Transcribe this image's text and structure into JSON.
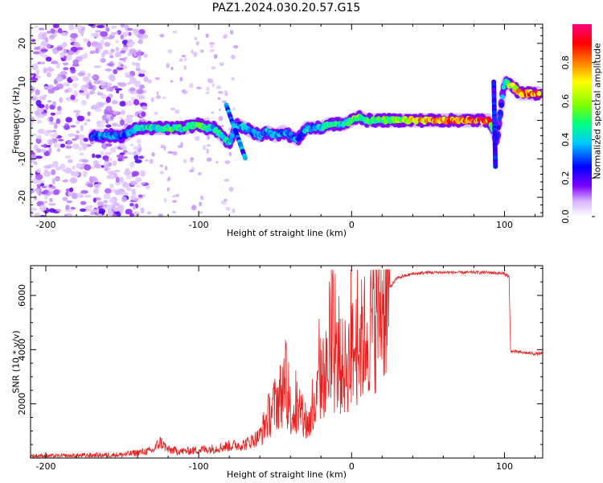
{
  "title": "PAZ1.2024.030.20.57.G15",
  "chart_data": [
    {
      "type": "heatmap",
      "xlabel": "Height of straight line (km)",
      "ylabel": "Frequency (Hz)",
      "xlim": [
        -210,
        125
      ],
      "ylim": [
        -25,
        25
      ],
      "xticks": [
        -200,
        -100,
        0,
        100
      ],
      "yticks": [
        -20,
        -10,
        0,
        10,
        20
      ],
      "colorbar": {
        "label": "Normalized spectral amplitude",
        "range": [
          0,
          1
        ],
        "ticks": [
          "0.0",
          "0.2",
          "0.4",
          "0.6",
          "0.8"
        ],
        "colormap": [
          "#ffffff",
          "#cfa6ff",
          "#7a00ff",
          "#0000ff",
          "#00c8ff",
          "#00ff80",
          "#80ff00",
          "#ffff00",
          "#ff8000",
          "#ff0000",
          "#ff0080"
        ]
      },
      "ridge": {
        "x": [
          -170,
          -160,
          -150,
          -140,
          -130,
          -120,
          -110,
          -100,
          -95,
          -90,
          -85,
          -80,
          -75,
          -70,
          -65,
          -60,
          -55,
          -50,
          -45,
          -40,
          -35,
          -30,
          -25,
          -20,
          -15,
          -10,
          -5,
          0,
          5,
          10,
          20,
          30,
          40,
          50,
          60,
          70,
          80,
          90,
          95,
          100,
          105,
          110,
          115,
          120
        ],
        "y": [
          -4,
          -4,
          -4,
          -2,
          -2,
          -2,
          -2,
          -1,
          -2,
          -2,
          -4,
          -6,
          -1,
          -2,
          -3,
          -4,
          -3,
          -4,
          -3,
          -4,
          -5,
          -2,
          -2,
          -2,
          -1,
          -1,
          -1,
          0,
          1,
          0,
          0,
          0,
          0,
          0,
          0,
          0,
          0,
          0,
          -5,
          10,
          9,
          7,
          7,
          7
        ],
        "amplitude": [
          0.35,
          0.4,
          0.35,
          0.45,
          0.5,
          0.55,
          0.5,
          0.55,
          0.5,
          0.45,
          0.5,
          0.45,
          0.4,
          0.45,
          0.4,
          0.45,
          0.4,
          0.45,
          0.4,
          0.4,
          0.35,
          0.45,
          0.4,
          0.45,
          0.5,
          0.5,
          0.5,
          0.55,
          0.6,
          0.55,
          0.55,
          0.6,
          0.75,
          0.8,
          0.8,
          0.85,
          0.9,
          0.9,
          0.3,
          0.45,
          0.7,
          0.85,
          0.9,
          0.9
        ]
      }
    },
    {
      "type": "line",
      "xlabel": "Height of straight line (km)",
      "ylabel": "SNR (10 * v/v)",
      "xlim": [
        -210,
        125
      ],
      "ylim": [
        0,
        7100
      ],
      "xticks": [
        -200,
        -100,
        0,
        100
      ],
      "yticks": [
        2000,
        4000,
        6000
      ],
      "color": "#e8211f",
      "series": [
        {
          "x": [
            -210,
            -190,
            -170,
            -150,
            -140,
            -130,
            -125,
            -120,
            -110,
            -100,
            -90,
            -80,
            -70,
            -60,
            -55,
            -50,
            -45,
            -40,
            -35,
            -30,
            -25,
            -20,
            -15,
            -10,
            -5,
            0,
            5,
            10,
            15,
            20,
            25,
            30,
            40,
            50,
            60,
            70,
            80,
            90,
            100,
            103,
            104,
            110,
            115,
            120,
            125
          ],
          "y": [
            80,
            70,
            100,
            120,
            200,
            280,
            600,
            300,
            250,
            300,
            350,
            450,
            500,
            800,
            1500,
            2000,
            2500,
            1800,
            1500,
            1200,
            1500,
            3000,
            3200,
            3500,
            3300,
            3800,
            4200,
            4600,
            5200,
            5800,
            6300,
            6650,
            6800,
            6850,
            6850,
            6850,
            6850,
            6850,
            6800,
            6700,
            3950,
            3900,
            3880,
            3850,
            3850
          ]
        }
      ]
    }
  ]
}
